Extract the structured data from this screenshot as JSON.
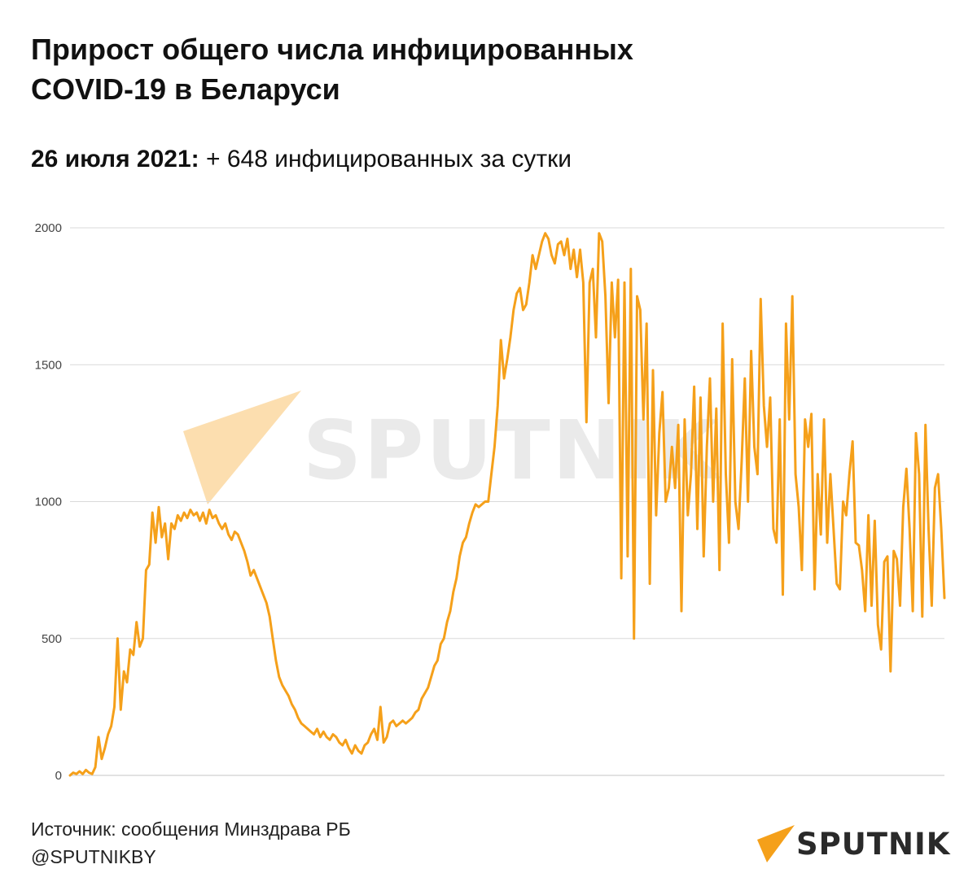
{
  "header": {
    "title_line1": "Прирост общего числа инфицированных",
    "title_line2": "COVID-19 в Беларуси",
    "subtitle_date": "26 июля 2021:",
    "subtitle_text": " + 648 инфицированных за сутки"
  },
  "footer": {
    "source": "Источник: сообщения Минздрава РБ",
    "handle": "@SPUTNIKBY",
    "brand": "SPUTNIK"
  },
  "watermark": {
    "text": "SPUTNIK"
  },
  "colors": {
    "line": "#F5A01A",
    "grid": "#d9d9d9",
    "logo_accent": "#F5A01A",
    "text": "#111111"
  },
  "chart_data": {
    "type": "line",
    "title": "",
    "xlabel": "",
    "ylabel": "",
    "ylim": [
      0,
      2000
    ],
    "yticks": [
      "0",
      "500",
      "1000",
      "1500",
      "2000"
    ],
    "grid": true,
    "series": [
      {
        "values": [
          0,
          10,
          5,
          15,
          5,
          20,
          10,
          5,
          30,
          140,
          60,
          100,
          150,
          180,
          250,
          500,
          240,
          380,
          340,
          460,
          440,
          560,
          470,
          500,
          750,
          770,
          960,
          850,
          980,
          870,
          920,
          790,
          920,
          900,
          950,
          930,
          960,
          940,
          970,
          950,
          960,
          930,
          960,
          920,
          970,
          940,
          950,
          920,
          900,
          920,
          880,
          860,
          890,
          880,
          850,
          820,
          780,
          730,
          750,
          720,
          690,
          660,
          630,
          580,
          500,
          420,
          360,
          330,
          310,
          290,
          260,
          240,
          210,
          190,
          180,
          170,
          160,
          150,
          170,
          140,
          160,
          140,
          130,
          150,
          140,
          120,
          110,
          130,
          100,
          80,
          110,
          90,
          80,
          110,
          120,
          150,
          170,
          130,
          250,
          120,
          140,
          190,
          200,
          180,
          190,
          200,
          190,
          200,
          210,
          230,
          240,
          280,
          300,
          320,
          360,
          400,
          420,
          480,
          500,
          560,
          600,
          670,
          720,
          800,
          850,
          870,
          920,
          960,
          990,
          980,
          990,
          1000,
          1000,
          1100,
          1200,
          1350,
          1590,
          1450,
          1520,
          1600,
          1700,
          1760,
          1780,
          1700,
          1720,
          1800,
          1900,
          1850,
          1900,
          1950,
          1980,
          1960,
          1900,
          1870,
          1940,
          1950,
          1900,
          1960,
          1850,
          1920,
          1820,
          1920,
          1800,
          1290,
          1800,
          1850,
          1600,
          1980,
          1950,
          1750,
          1360,
          1800,
          1600,
          1810,
          720,
          1800,
          800,
          1850,
          500,
          1750,
          1700,
          1300,
          1650,
          700,
          1480,
          950,
          1250,
          1400,
          1000,
          1050,
          1200,
          1050,
          1280,
          600,
          1300,
          950,
          1100,
          1420,
          900,
          1380,
          800,
          1200,
          1450,
          1000,
          1340,
          750,
          1650,
          1100,
          850,
          1520,
          1000,
          900,
          1150,
          1450,
          1000,
          1550,
          1200,
          1100,
          1740,
          1350,
          1200,
          1380,
          900,
          850,
          1300,
          660,
          1650,
          1300,
          1750,
          1100,
          980,
          750,
          1300,
          1200,
          1320,
          680,
          1100,
          880,
          1300,
          850,
          1100,
          900,
          700,
          680,
          1000,
          950,
          1100,
          1220,
          850,
          840,
          750,
          600,
          950,
          620,
          930,
          550,
          460,
          780,
          800,
          380,
          820,
          790,
          620,
          980,
          1120,
          900,
          600,
          1250,
          1100,
          580,
          1280,
          900,
          620,
          1050,
          1100,
          900,
          648
        ]
      }
    ]
  }
}
